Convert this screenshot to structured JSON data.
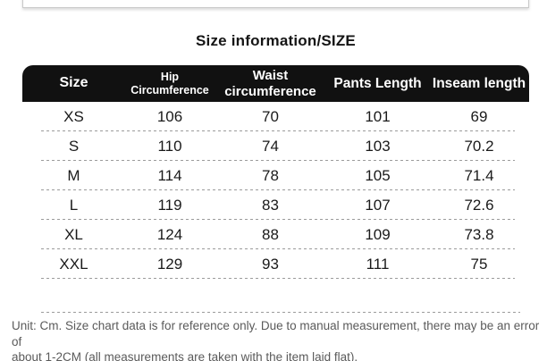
{
  "title": "Size information/SIZE",
  "chart_data": {
    "type": "table",
    "title": "Size information/SIZE",
    "unit": "cm",
    "columns": [
      "Size",
      "Hip Circumference",
      "Waist circumference",
      "Pants Length",
      "Inseam length"
    ],
    "rows": [
      [
        "XS",
        "106",
        "70",
        "101",
        "69"
      ],
      [
        "S",
        "110",
        "74",
        "103",
        "70.2"
      ],
      [
        "M",
        "114",
        "78",
        "105",
        "71.4"
      ],
      [
        "L",
        "119",
        "83",
        "107",
        "72.6"
      ],
      [
        "XL",
        "124",
        "88",
        "109",
        "73.8"
      ],
      [
        "XXL",
        "129",
        "93",
        "111",
        "75"
      ]
    ],
    "note": "Unit: Cm. Size chart data is for reference only. Due to manual measurement, there may be an error of about 1-2CM (all measurements are taken with the item laid flat)."
  },
  "footer": {
    "lines": [
      "Unit: Cm. Size chart data is for reference only. Due to manual measurement, there may be an error of",
      "about 1-2CM (all measurements are taken with the item laid flat)."
    ]
  },
  "colors": {
    "header_bg": "#111111",
    "header_text": "#ffffff",
    "body_text": "#1a1a1a",
    "separator": "#9b9b9b",
    "note_text": "#5a5a5a",
    "top_box_border": "#c9c9c9"
  }
}
